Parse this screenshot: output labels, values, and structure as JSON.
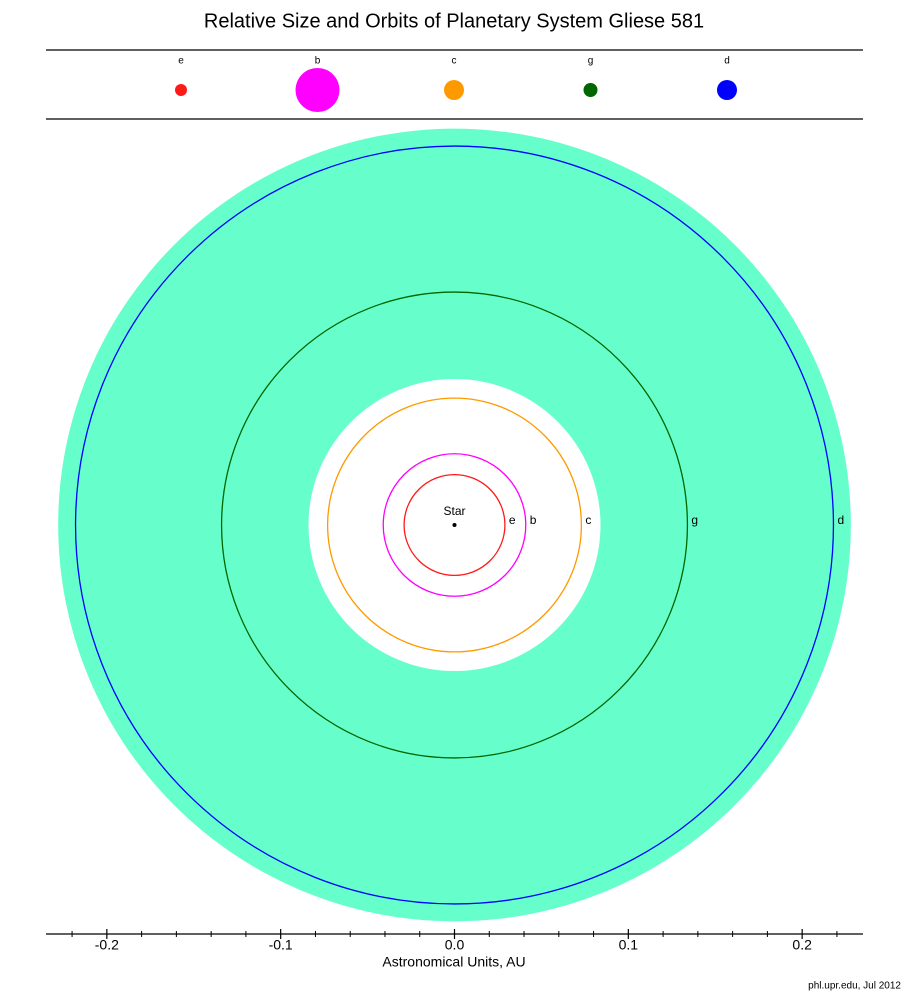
{
  "chart_data": {
    "type": "orbit",
    "title": "Relative Size and Orbits of Planetary System Gliese 581",
    "x_label": "Astronomical Units, AU",
    "credit": "phl.upr.edu, Jul 2012",
    "star_label": "Star",
    "planets": {
      "names": [
        "e",
        "b",
        "c",
        "g",
        "d"
      ],
      "colors": [
        "#ff1a1a",
        "#ff00ff",
        "#ff9900",
        "#006600",
        "#0000ff"
      ],
      "orbit_radius": [
        0.029,
        0.041,
        0.073,
        0.134,
        0.218
      ],
      "relative_size": [
        6,
        22,
        10,
        7,
        10
      ]
    },
    "habitable_zone": {
      "inner": 0.084,
      "outer": 0.228,
      "color": "#66ffcc"
    },
    "xlim": [
      -0.235,
      0.235
    ],
    "xticks": [
      -0.2,
      -0.1,
      {
        "value": 0,
        "label": "0.0"
      },
      0.1,
      0.2
    ],
    "xminor": [
      -0.22,
      -0.18,
      -0.16,
      -0.14,
      -0.12,
      -0.08,
      -0.06,
      -0.04,
      -0.02,
      0.02,
      0.04,
      0.06,
      0.08,
      0.12,
      0.14,
      0.16,
      0.18,
      0.22
    ]
  }
}
